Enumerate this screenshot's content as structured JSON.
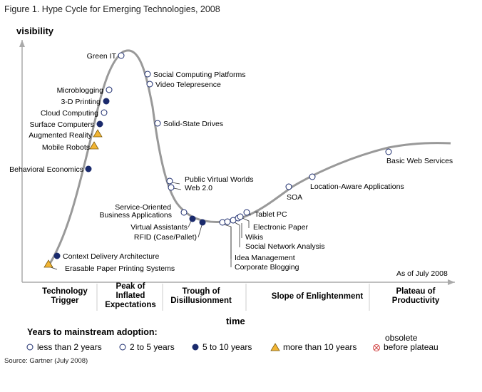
{
  "figure_title": "Figure 1. Hype Cycle for Emerging Technologies, 2008",
  "source": "Source: Gartner (July 2008)",
  "as_of": "As of July 2008",
  "chart_data": {
    "type": "line",
    "title": "Figure 1. Hype Cycle for Emerging Technologies, 2008",
    "ylabel": "visibility",
    "xlabel": "time",
    "phases": [
      {
        "lines": [
          "Technology",
          "Trigger"
        ]
      },
      {
        "lines": [
          "Peak of",
          "Inflated",
          "Expectations"
        ]
      },
      {
        "lines": [
          "Trough of",
          "Disillusionment"
        ]
      },
      {
        "lines": [
          "Slope of Enlightenment"
        ]
      },
      {
        "lines": [
          "Plateau of",
          "Productivity"
        ]
      }
    ],
    "points": [
      {
        "label": "Green IT",
        "category": "2 to 5 years",
        "t": 0.26
      },
      {
        "label": "Social Computing Platforms",
        "category": "2 to 5 years",
        "t": 0.32
      },
      {
        "label": "Video Telepresence",
        "category": "2 to 5 years",
        "t": 0.33
      },
      {
        "label": "Microblogging",
        "category": "2 to 5 years",
        "t": 0.235
      },
      {
        "label": "3-D Printing",
        "category": "5 to 10 years",
        "t": 0.225
      },
      {
        "label": "Cloud Computing",
        "category": "2 to 5 years",
        "t": 0.22
      },
      {
        "label": "Surface Computers",
        "category": "5 to 10 years",
        "t": 0.21
      },
      {
        "label": "Augmented Reality",
        "category": "more than 10 years",
        "t": 0.2
      },
      {
        "label": "Mobile Robots",
        "category": "more than 10 years",
        "t": 0.195
      },
      {
        "label": "Solid-State Drives",
        "category": "2 to 5 years",
        "t": 0.35
      },
      {
        "label": "Behavioral Economics",
        "category": "5 to 10 years",
        "t": 0.18
      },
      {
        "label": "Public Virtual Worlds",
        "category": "2 to 5 years",
        "t": 0.37
      },
      {
        "label": "Web 2.0",
        "category": "2 to 5 years",
        "t": 0.375
      },
      {
        "label": "Service-Oriented Business Applications",
        "category": "less than 2 years",
        "t": 0.4
      },
      {
        "label": "Virtual Assistants",
        "category": "5 to 10 years",
        "t": 0.42
      },
      {
        "label": "RFID (Case/Pallet)",
        "category": "5 to 10 years",
        "t": 0.44
      },
      {
        "label": "Corporate Blogging",
        "category": "less than 2 years",
        "t": 0.47
      },
      {
        "label": "Idea Management",
        "category": "less than 2 years",
        "t": 0.48
      },
      {
        "label": "Social Network Analysis",
        "category": "2 to 5 years",
        "t": 0.49
      },
      {
        "label": "Wikis",
        "category": "less than 2 years",
        "t": 0.5
      },
      {
        "label": "Electronic Paper",
        "category": "2 to 5 years",
        "t": 0.51
      },
      {
        "label": "Tablet PC",
        "category": "2 to 5 years",
        "t": 0.53
      },
      {
        "label": "SOA",
        "category": "less than 2 years",
        "t": 0.62
      },
      {
        "label": "Location-Aware Applications",
        "category": "less than 2 years",
        "t": 0.67
      },
      {
        "label": "Basic Web Services",
        "category": "less than 2 years",
        "t": 0.85
      },
      {
        "label": "Context Delivery Architecture",
        "category": "5 to 10 years",
        "t": 0.1
      },
      {
        "label": "Erasable Paper Printing Systems",
        "category": "more than 10 years",
        "t": 0.08
      }
    ]
  },
  "legend": {
    "title": "Years to mainstream adoption:",
    "items": [
      {
        "symbol": "open-circle",
        "label": "less than 2 years",
        "color": "#ffffff"
      },
      {
        "symbol": "open-circle",
        "label": "2 to 5 years",
        "color": "#ffffff"
      },
      {
        "symbol": "filled-circle",
        "label": "5 to 10 years",
        "color": "#1a2a6c"
      },
      {
        "symbol": "triangle",
        "label": "more than 10 years",
        "color": "#f2b533"
      }
    ],
    "obsolete": {
      "symbol": "crossed-circle",
      "line1": "obsolete",
      "line2": "before plateau",
      "color": "#d04040"
    }
  },
  "colors": {
    "curve": "#999999",
    "axis": "#aaaaaa",
    "dark_marker": "#1a2a6c",
    "triangle": "#f2b533"
  }
}
